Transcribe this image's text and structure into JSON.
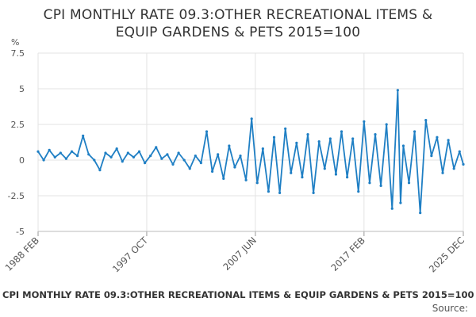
{
  "chart_data": {
    "type": "line",
    "title_lines": [
      "CPI MONTHLY RATE 09.3:OTHER RECREATIONAL ITEMS &",
      "EQUIP GARDENS & PETS 2015=100"
    ],
    "ylabel": "%",
    "ylim": [
      -5,
      7.5
    ],
    "yticks": [
      "7.5",
      "5",
      "2.5",
      "0",
      "-2.5",
      "-5"
    ],
    "ytick_values": [
      7.5,
      5,
      2.5,
      0,
      -2.5,
      -5
    ],
    "xlim": [
      "1988-02",
      "2025-12"
    ],
    "xticks": [
      "1988 FEB",
      "1997 OCT",
      "2007 JUN",
      "2017 FEB",
      "2025 DEC"
    ],
    "xtick_dates": [
      "1988-02",
      "1997-10",
      "2007-06",
      "2017-02",
      "2025-12"
    ],
    "grid": true,
    "color": "#1f7fc4",
    "series": [
      {
        "name": "",
        "x": [
          "1988-02",
          "1988-08",
          "1989-02",
          "1989-08",
          "1990-02",
          "1990-08",
          "1991-02",
          "1991-08",
          "1992-02",
          "1992-08",
          "1993-02",
          "1993-08",
          "1994-02",
          "1994-08",
          "1995-02",
          "1995-08",
          "1996-02",
          "1996-08",
          "1997-02",
          "1997-08",
          "1998-02",
          "1998-08",
          "1999-02",
          "1999-08",
          "2000-02",
          "2000-08",
          "2001-02",
          "2001-08",
          "2002-02",
          "2002-08",
          "2003-02",
          "2003-08",
          "2004-02",
          "2004-08",
          "2005-02",
          "2005-08",
          "2006-02",
          "2006-08",
          "2007-02",
          "2007-08",
          "2008-02",
          "2008-08",
          "2009-02",
          "2009-08",
          "2010-02",
          "2010-08",
          "2011-02",
          "2011-08",
          "2012-02",
          "2012-08",
          "2013-02",
          "2013-08",
          "2014-02",
          "2014-08",
          "2015-02",
          "2015-08",
          "2016-02",
          "2016-08",
          "2017-02",
          "2017-08",
          "2018-02",
          "2018-08",
          "2019-02",
          "2019-08",
          "2020-02",
          "2020-05",
          "2020-08",
          "2021-02",
          "2021-08",
          "2022-02",
          "2022-08",
          "2023-02",
          "2023-08",
          "2024-02",
          "2024-08",
          "2025-02",
          "2025-08",
          "2025-12"
        ],
        "values": [
          0.6,
          0.0,
          0.7,
          0.2,
          0.5,
          0.1,
          0.6,
          0.3,
          1.7,
          0.4,
          0.0,
          -0.7,
          0.5,
          0.2,
          0.8,
          -0.1,
          0.5,
          0.2,
          0.6,
          -0.2,
          0.3,
          0.9,
          0.1,
          0.4,
          -0.3,
          0.5,
          0.0,
          -0.6,
          0.3,
          -0.2,
          2.0,
          -0.8,
          0.4,
          -1.3,
          1.0,
          -0.5,
          0.3,
          -1.4,
          2.9,
          -1.6,
          0.8,
          -2.2,
          1.6,
          -2.3,
          2.2,
          -0.9,
          1.2,
          -1.2,
          1.8,
          -2.3,
          1.3,
          -0.6,
          1.5,
          -1.0,
          2.0,
          -1.2,
          1.5,
          -2.2,
          2.7,
          -1.6,
          1.8,
          -1.8,
          2.5,
          -3.4,
          4.9,
          -3.0,
          1.0,
          -1.6,
          2.0,
          -3.7,
          2.8,
          0.3,
          1.6,
          -0.9,
          1.4,
          -0.6,
          0.6,
          -0.3
        ]
      }
    ]
  },
  "footer": {
    "title": "CPI MONTHLY RATE 09.3:OTHER RECREATIONAL ITEMS & EQUIP GARDENS & PETS 2015=100",
    "source": "Source:"
  }
}
